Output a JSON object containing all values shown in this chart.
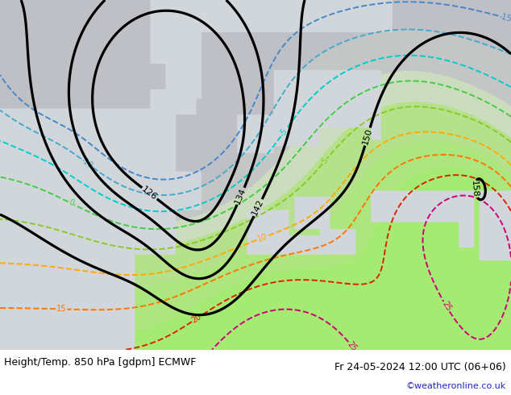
{
  "title_left": "Height/Temp. 850 hPa [gdpm] ECMWF",
  "title_right": "Fr 24-05-2024 12:00 UTC (06+06)",
  "credit": "©weatheronline.co.uk",
  "sea_color": [
    0.82,
    0.84,
    0.86
  ],
  "land_cold_color": [
    0.76,
    0.76,
    0.76
  ],
  "land_cool_color": [
    0.82,
    0.87,
    0.76
  ],
  "land_warm_color": [
    0.7,
    0.87,
    0.54
  ],
  "land_hot_color": [
    0.66,
    0.89,
    0.48
  ],
  "white_color": [
    1.0,
    1.0,
    1.0
  ],
  "height_levels": [
    126,
    134,
    142,
    150,
    158
  ],
  "temp_levels_n15": [
    -15
  ],
  "temp_levels_n10": [
    -10
  ],
  "temp_levels_n5": [
    -5
  ],
  "temp_levels_0": [
    0
  ],
  "temp_levels_5": [
    5
  ],
  "temp_levels_10": [
    10
  ],
  "temp_levels_15": [
    15
  ],
  "temp_levels_20": [
    20
  ],
  "temp_levels_25": [
    25
  ],
  "color_n15": "#4488cc",
  "color_n10": "#44aacc",
  "color_n5": "#00cccc",
  "color_0": "#44cc44",
  "color_5": "#88cc22",
  "color_10": "#ffaa00",
  "color_15": "#ff7700",
  "color_20": "#dd2200",
  "color_25": "#cc0077",
  "title_fontsize": 9,
  "credit_fontsize": 8,
  "label_fontsize": 7,
  "lon_min": -44,
  "lon_max": 55,
  "lat_min": 22,
  "lat_max": 77
}
